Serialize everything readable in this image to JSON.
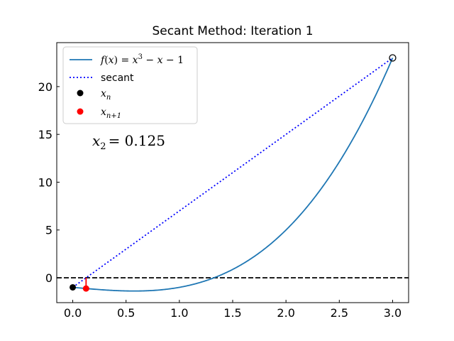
{
  "chart_data": {
    "type": "line",
    "title": "Secant Method: Iteration 1",
    "xlabel": "",
    "ylabel": "",
    "xlim": [
      -0.15,
      3.15
    ],
    "ylim": [
      -2.6,
      24.6
    ],
    "x_ticks": [
      0.0,
      0.5,
      1.0,
      1.5,
      2.0,
      2.5,
      3.0
    ],
    "x_tick_labels": [
      "0.0",
      "0.5",
      "1.0",
      "1.5",
      "2.0",
      "2.5",
      "3.0"
    ],
    "y_ticks": [
      0,
      5,
      10,
      15,
      20
    ],
    "y_tick_labels": [
      "0",
      "5",
      "10",
      "15",
      "20"
    ],
    "grid": false,
    "legend_position": "upper-left",
    "function_domain": [
      0,
      3
    ],
    "function_label": {
      "text": "f(x) = x^3 - x - 1",
      "lhs": "f",
      "arg": "x",
      "rhs_a": "x",
      "exp": "3",
      "rhs_b": "x",
      "const": "1"
    },
    "secant_label": "secant",
    "xn_label": {
      "base": "x",
      "sub": "n"
    },
    "xn1_label": {
      "base": "x",
      "sub": "n+1"
    },
    "annotation": {
      "var": "x",
      "sub": "2",
      "value": "= 0.125"
    },
    "series": [
      {
        "name": "f(x) = x^3 − x − 1",
        "style": "solid",
        "color": "#1f77b4",
        "expression": "x^3 - x - 1"
      },
      {
        "name": "secant",
        "style": "dotted",
        "color": "#0000ff",
        "points": [
          [
            0,
            -1
          ],
          [
            3,
            23
          ]
        ]
      }
    ],
    "points": [
      {
        "name": "x_n",
        "x": 0,
        "y": -1,
        "color": "#000000",
        "filled": true
      },
      {
        "name": "x_n+1",
        "x": 0.125,
        "y": -1.123,
        "color": "#ff0000",
        "filled": true
      },
      {
        "name": "previous point",
        "x": 3,
        "y": 23,
        "color": "#000000",
        "filled": false
      }
    ],
    "hline": {
      "y": 0,
      "style": "dashed",
      "color": "#000000"
    },
    "red_segment": [
      [
        0.125,
        0
      ],
      [
        0.125,
        -1.123
      ]
    ]
  }
}
